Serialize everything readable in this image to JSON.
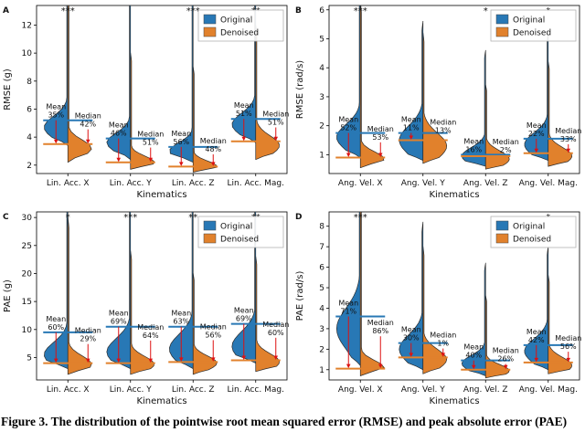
{
  "figure": {
    "caption": "Figure 3. The distribution of the pointwise root mean squared error (RMSE) and peak absolute error (PAE)",
    "legend": [
      {
        "name": "original",
        "label": "Original",
        "color": "#2878b5"
      },
      {
        "name": "denoised",
        "label": "Denoised",
        "color": "#e1812c"
      }
    ],
    "annotation_labels": {
      "mean": "Mean",
      "median": "Median"
    },
    "colors": {
      "original": "#2878b5",
      "denoised": "#e1812c",
      "annotation_red": "#dd1111",
      "axis": "#000000"
    }
  },
  "chart_data": [
    {
      "panel": "A",
      "type": "violin",
      "split": true,
      "xlabel": "Kinematics",
      "ylabel": "RMSE (g)",
      "ylim": [
        1.4,
        13.4
      ],
      "yticks": [
        2,
        4,
        6,
        8,
        10,
        12
      ],
      "legend_entries": [
        "Original",
        "Denoised"
      ],
      "categories": [
        {
          "label": "Lin. Acc. X",
          "significance": "***",
          "mean_reduction": "35%",
          "median_reduction": "42%",
          "original": {
            "line": 5.2,
            "range": [
              3.4,
              16.0
            ],
            "peak": 4.7,
            "spread": 0.8
          },
          "denoised": {
            "line": 3.5,
            "range": [
              2.2,
              16.0
            ],
            "peak": 3.2,
            "spread": 0.6
          }
        },
        {
          "label": "Lin. Acc. Y",
          "significance": "",
          "mean_reduction": "46%",
          "median_reduction": "51%",
          "original": {
            "line": 3.9,
            "range": [
              2.4,
              16.0
            ],
            "peak": 3.6,
            "spread": 0.7
          },
          "denoised": {
            "line": 2.2,
            "range": [
              1.7,
              10.0
            ],
            "peak": 2.2,
            "spread": 0.45
          }
        },
        {
          "label": "Lin. Acc. Z",
          "significance": "***",
          "mean_reduction": "56%",
          "median_reduction": "48%",
          "original": {
            "line": 3.3,
            "range": [
              2.2,
              16.0
            ],
            "peak": 3.0,
            "spread": 0.6
          },
          "denoised": {
            "line": 1.9,
            "range": [
              1.5,
              9.0
            ],
            "peak": 1.9,
            "spread": 0.4
          }
        },
        {
          "label": "Lin. Acc. Mag.",
          "significance": "**",
          "mean_reduction": "51%",
          "median_reduction": "51%",
          "original": {
            "line": 5.3,
            "range": [
              3.6,
              16.0
            ],
            "peak": 4.9,
            "spread": 0.8
          },
          "denoised": {
            "line": 3.7,
            "range": [
              2.4,
              12.0
            ],
            "peak": 3.4,
            "spread": 0.7
          }
        }
      ]
    },
    {
      "panel": "B",
      "type": "violin",
      "split": true,
      "xlabel": "Kinematics",
      "ylabel": "RMSE (rad/s)",
      "ylim": [
        0.35,
        6.15
      ],
      "yticks": [
        1,
        2,
        3,
        4,
        5,
        6
      ],
      "legend_entries": [
        "Original",
        "Denoised"
      ],
      "categories": [
        {
          "label": "Ang. Vel. X",
          "significance": "***",
          "mean_reduction": "52%",
          "median_reduction": "53%",
          "original": {
            "line": 1.75,
            "range": [
              0.9,
              6.5
            ],
            "peak": 1.6,
            "spread": 0.45
          },
          "denoised": {
            "line": 0.9,
            "range": [
              0.55,
              6.3
            ],
            "peak": 0.85,
            "spread": 0.25
          }
        },
        {
          "label": "Ang. Vel. Y",
          "significance": "",
          "mean_reduction": "11%",
          "median_reduction": "13%",
          "original": {
            "line": 1.75,
            "range": [
              0.8,
              5.6
            ],
            "peak": 1.5,
            "spread": 0.5
          },
          "denoised": {
            "line": 1.5,
            "range": [
              0.7,
              5.2
            ],
            "peak": 1.3,
            "spread": 0.45
          }
        },
        {
          "label": "Ang. Vel. Z",
          "significance": "*",
          "mean_reduction": "16%",
          "median_reduction": "2%",
          "original": {
            "line": 1.0,
            "range": [
              0.6,
              4.6
            ],
            "peak": 0.95,
            "spread": 0.3
          },
          "denoised": {
            "line": 0.95,
            "range": [
              0.5,
              3.4
            ],
            "peak": 0.85,
            "spread": 0.28
          }
        },
        {
          "label": "Ang. Vel. Mag.",
          "significance": "*",
          "mean_reduction": "22%",
          "median_reduction": "33%",
          "original": {
            "line": 1.55,
            "range": [
              0.8,
              5.2
            ],
            "peak": 1.35,
            "spread": 0.4
          },
          "denoised": {
            "line": 1.05,
            "range": [
              0.6,
              4.2
            ],
            "peak": 0.95,
            "spread": 0.3
          }
        }
      ]
    },
    {
      "panel": "C",
      "type": "violin",
      "split": true,
      "xlabel": "Kinematics",
      "ylabel": "PAE (g)",
      "ylim": [
        1.0,
        31.0
      ],
      "yticks": [
        5,
        10,
        15,
        20,
        25,
        30
      ],
      "legend_entries": [
        "Original",
        "Denoised"
      ],
      "categories": [
        {
          "label": "Lin. Acc. X",
          "significance": "*",
          "mean_reduction": "60%",
          "median_reduction": "29%",
          "original": {
            "line": 9.5,
            "range": [
              3.0,
              36.0
            ],
            "peak": 5.5,
            "spread": 2.2
          },
          "denoised": {
            "line": 4.0,
            "range": [
              2.0,
              30.0
            ],
            "peak": 3.8,
            "spread": 1.5
          }
        },
        {
          "label": "Lin. Acc. Y",
          "significance": "***",
          "mean_reduction": "69%",
          "median_reduction": "64%",
          "original": {
            "line": 10.5,
            "range": [
              3.0,
              36.0
            ],
            "peak": 6.0,
            "spread": 2.4
          },
          "denoised": {
            "line": 4.0,
            "range": [
              2.0,
              24.0
            ],
            "peak": 3.8,
            "spread": 1.4
          }
        },
        {
          "label": "Lin. Acc. Z",
          "significance": "**",
          "mean_reduction": "63%",
          "median_reduction": "56%",
          "original": {
            "line": 10.5,
            "range": [
              3.0,
              36.0
            ],
            "peak": 6.5,
            "spread": 2.6
          },
          "denoised": {
            "line": 4.2,
            "range": [
              2.0,
              20.0
            ],
            "peak": 4.0,
            "spread": 1.3
          }
        },
        {
          "label": "Lin. Acc. Mag.",
          "significance": "**",
          "mean_reduction": "69%",
          "median_reduction": "60%",
          "original": {
            "line": 11.0,
            "range": [
              4.0,
              36.0
            ],
            "peak": 7.0,
            "spread": 2.6
          },
          "denoised": {
            "line": 4.5,
            "range": [
              2.5,
              23.0
            ],
            "peak": 4.2,
            "spread": 1.5
          }
        }
      ]
    },
    {
      "panel": "D",
      "type": "violin",
      "split": true,
      "xlabel": "Kinematics",
      "ylabel": "PAE (rad/s)",
      "ylim": [
        0.5,
        8.7
      ],
      "yticks": [
        1,
        2,
        3,
        4,
        5,
        6,
        7,
        8
      ],
      "legend_entries": [
        "Original",
        "Denoised"
      ],
      "categories": [
        {
          "label": "Ang. Vel. X",
          "significance": "***",
          "mean_reduction": "71%",
          "median_reduction": "86%",
          "original": {
            "line": 3.6,
            "range": [
              1.2,
              10.0
            ],
            "peak": 3.0,
            "spread": 1.0
          },
          "denoised": {
            "line": 1.05,
            "range": [
              0.7,
              9.5
            ],
            "peak": 1.1,
            "spread": 0.35
          }
        },
        {
          "label": "Ang. Vel. Y",
          "significance": "",
          "mean_reduction": "30%",
          "median_reduction": "1%",
          "original": {
            "line": 2.3,
            "range": [
              1.0,
              8.2
            ],
            "peak": 2.0,
            "spread": 0.7
          },
          "denoised": {
            "line": 1.6,
            "range": [
              0.8,
              7.0
            ],
            "peak": 1.5,
            "spread": 0.5
          }
        },
        {
          "label": "Ang. Vel. Z",
          "significance": "",
          "mean_reduction": "40%",
          "median_reduction": "26%",
          "original": {
            "line": 1.45,
            "range": [
              0.7,
              6.2
            ],
            "peak": 1.3,
            "spread": 0.4
          },
          "denoised": {
            "line": 1.0,
            "range": [
              0.6,
              4.6
            ],
            "peak": 0.95,
            "spread": 0.3
          }
        },
        {
          "label": "Ang. Vel. Mag.",
          "significance": "*",
          "mean_reduction": "42%",
          "median_reduction": "56%",
          "original": {
            "line": 2.2,
            "range": [
              1.0,
              7.0
            ],
            "peak": 1.9,
            "spread": 0.6
          },
          "denoised": {
            "line": 1.35,
            "range": [
              0.8,
              5.6
            ],
            "peak": 1.2,
            "spread": 0.4
          }
        }
      ]
    }
  ]
}
